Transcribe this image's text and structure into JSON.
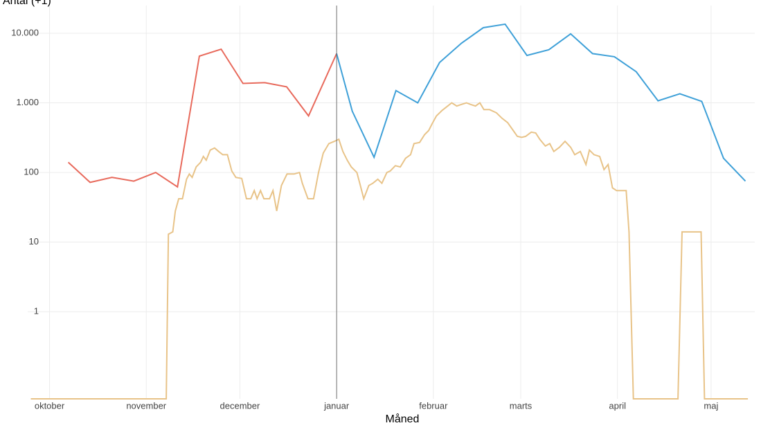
{
  "chart_data": {
    "type": "line",
    "y_label": "Antal (+1)",
    "x_label": "Måned",
    "log_y": true,
    "grid": true,
    "vline": 92,
    "xlim": [
      -7,
      226
    ],
    "xticks": [
      {
        "value": 0,
        "label": "oktober"
      },
      {
        "value": 31,
        "label": "november"
      },
      {
        "value": 61,
        "label": "december"
      },
      {
        "value": 92,
        "label": "januar"
      },
      {
        "value": 123,
        "label": "februar"
      },
      {
        "value": 151,
        "label": "marts"
      },
      {
        "value": 182,
        "label": "april"
      },
      {
        "value": 212,
        "label": "maj"
      }
    ],
    "ylim": [
      0.056,
      25000
    ],
    "yticks": [
      1,
      10,
      100,
      {
        "value": 1000,
        "label": "1.000"
      },
      {
        "value": 10000,
        "label": "10.000"
      }
    ],
    "series": [
      {
        "color": "#e8695b",
        "x": [
          6,
          13,
          20,
          27,
          34,
          41,
          48,
          55,
          62,
          69,
          76,
          83,
          92
        ],
        "values": [
          140,
          72,
          85,
          75,
          100,
          62,
          4700,
          5900,
          1900,
          1950,
          1700,
          650,
          5100
        ]
      },
      {
        "color": "#3ea0d8",
        "x": [
          92,
          97,
          104,
          111,
          118,
          125,
          132,
          139,
          146,
          153,
          160,
          167,
          174,
          181,
          188,
          195,
          202,
          209,
          216,
          223
        ],
        "values": [
          5100,
          760,
          165,
          1500,
          1000,
          3800,
          7200,
          12000,
          13500,
          4800,
          5800,
          9800,
          5100,
          4600,
          2800,
          1070,
          1350,
          1050,
          160,
          75
        ]
      },
      {
        "color": "#e8c388",
        "x": [
          -6,
          37.4,
          38.1,
          39.5,
          40.3,
          41.4,
          42.6,
          43.9,
          44.8,
          45.7,
          47,
          48.4,
          49.3,
          50.2,
          51.5,
          52.9,
          54.2,
          55.5,
          57,
          58.4,
          59.7,
          61.6,
          63.1,
          64.5,
          65.6,
          66.5,
          67.6,
          68.7,
          70.5,
          71.6,
          72.8,
          74.3,
          76.1,
          78.4,
          80.1,
          81,
          82.8,
          84.6,
          86.2,
          87.7,
          89.5,
          91.3,
          92.7,
          94,
          95.4,
          96.7,
          98.5,
          99.6,
          100.7,
          102.3,
          103.6,
          105.2,
          106.5,
          108.1,
          109.2,
          110.8,
          112.4,
          114.1,
          115.7,
          116.8,
          118.6,
          120.2,
          121.5,
          122.6,
          124,
          125.8,
          127.6,
          128.9,
          130.5,
          132,
          133.6,
          134.9,
          136.5,
          137.9,
          139.2,
          141,
          143.2,
          145,
          146.8,
          148.6,
          149.9,
          151.3,
          152.6,
          154.4,
          155.8,
          157.1,
          158.9,
          160.3,
          161.6,
          163.4,
          165.2,
          167,
          168.3,
          170.1,
          171.9,
          173,
          174.5,
          176.3,
          177.7,
          179,
          180.4,
          181.7,
          184.8,
          185.7,
          187.1,
          201.4,
          202.7,
          208.8,
          209.9,
          223.8
        ],
        "values": [
          0.056,
          0.056,
          13,
          14,
          28,
          42,
          42,
          80,
          95,
          85,
          120,
          140,
          170,
          150,
          210,
          225,
          200,
          180,
          180,
          105,
          85,
          82,
          42,
          42,
          55,
          42,
          55,
          42,
          42,
          55,
          28,
          65,
          95,
          95,
          100,
          70,
          42,
          42,
          100,
          190,
          260,
          280,
          300,
          200,
          150,
          120,
          100,
          65,
          42,
          65,
          70,
          80,
          70,
          100,
          105,
          125,
          120,
          160,
          180,
          260,
          270,
          350,
          400,
          500,
          650,
          780,
          900,
          1000,
          900,
          950,
          1000,
          950,
          900,
          1000,
          800,
          800,
          720,
          600,
          520,
          400,
          330,
          320,
          330,
          380,
          370,
          300,
          240,
          260,
          200,
          230,
          280,
          230,
          180,
          200,
          130,
          210,
          180,
          170,
          110,
          130,
          60,
          55,
          55,
          14,
          0.056,
          0.056,
          14,
          14,
          0.056,
          0.056
        ]
      }
    ]
  }
}
